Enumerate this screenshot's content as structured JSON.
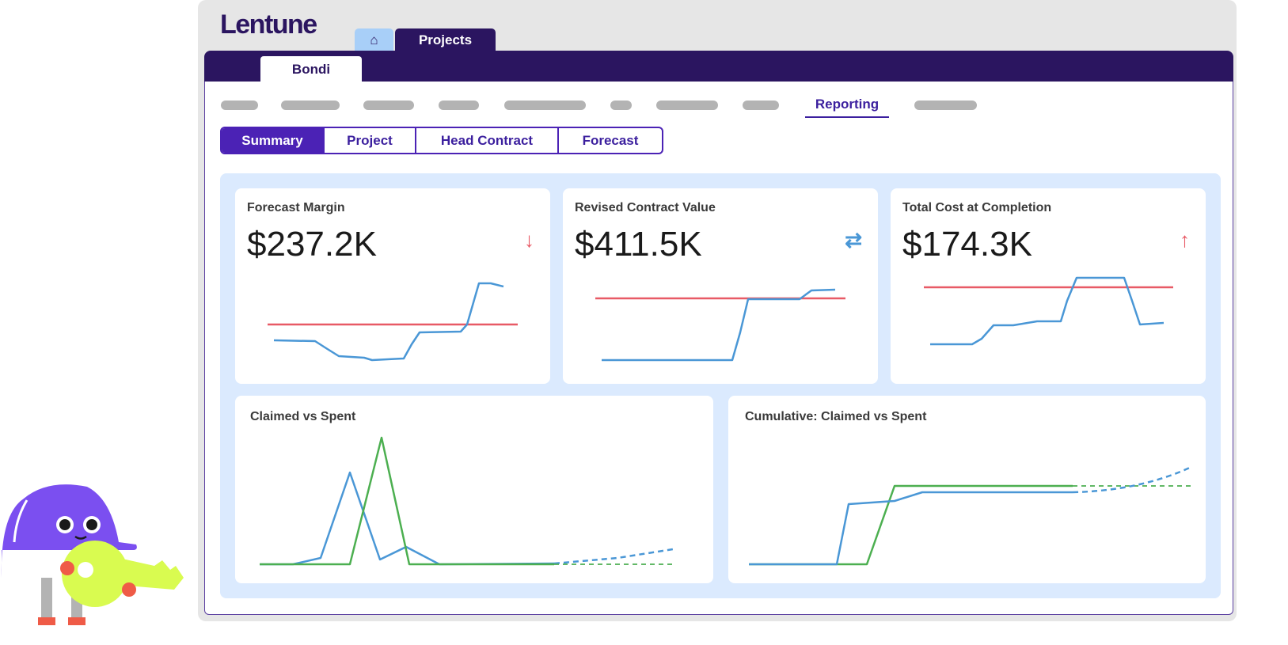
{
  "app": {
    "logo": "Lentune"
  },
  "tabs": {
    "home_icon": "home-icon",
    "projects": "Projects",
    "project_tab": "Bondi"
  },
  "nav": {
    "active": "Reporting"
  },
  "subtabs": [
    "Summary",
    "Project",
    "Head Contract",
    "Forecast"
  ],
  "subtabs_active": "Summary",
  "cards": [
    {
      "title": "Forecast Margin",
      "value": "$237.2K",
      "icon": "arrow-down-icon",
      "icon_glyph": "↓",
      "color": "#e85a66"
    },
    {
      "title": "Revised Contract Value",
      "value": "$411.5K",
      "icon": "swap-arrows-icon",
      "icon_glyph": "⇄",
      "color": "#4a97d6"
    },
    {
      "title": "Total Cost at Completion",
      "value": "$174.3K",
      "icon": "arrow-up-icon",
      "icon_glyph": "↑",
      "color": "#e85a66"
    }
  ],
  "charts": [
    {
      "title": "Claimed vs Spent"
    },
    {
      "title": "Cumulative: Claimed vs Spent"
    }
  ],
  "colors": {
    "brand": "#2b1560",
    "accent": "#4b22b5",
    "panel": "#dbeafe",
    "red": "#e85a66",
    "blue": "#4a97d6",
    "green": "#4caf50"
  }
}
